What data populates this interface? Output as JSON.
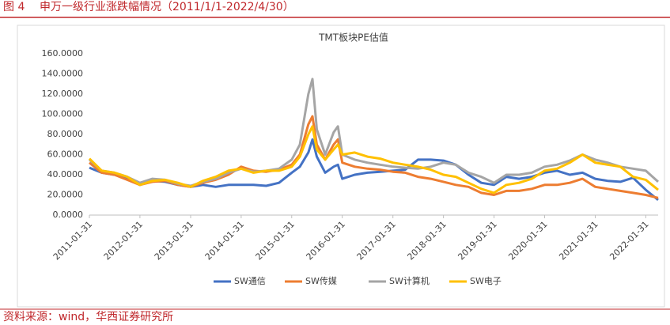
{
  "header": {
    "figure": "图 4",
    "title": "申万一级行业涨跌幅情况（2011/1/1-2022/4/30）"
  },
  "source": "资料来源：wind，华西证券研究所",
  "chart_data": {
    "type": "line",
    "title": "TMT板块PE估值",
    "x": [
      "2011-01-31",
      "2011-04-30",
      "2011-07-31",
      "2011-10-31",
      "2012-01-31",
      "2012-04-30",
      "2012-07-31",
      "2012-10-31",
      "2013-01-31",
      "2013-04-30",
      "2013-07-31",
      "2013-10-31",
      "2014-01-31",
      "2014-04-30",
      "2014-07-31",
      "2014-10-31",
      "2015-01-31",
      "2015-03-31",
      "2015-05-31",
      "2015-06-30",
      "2015-07-31",
      "2015-09-30",
      "2015-11-30",
      "2015-12-31",
      "2016-01-31",
      "2016-04-30",
      "2016-07-31",
      "2016-10-31",
      "2017-01-31",
      "2017-04-30",
      "2017-07-31",
      "2017-10-31",
      "2018-01-31",
      "2018-04-30",
      "2018-07-31",
      "2018-10-31",
      "2019-01-31",
      "2019-04-30",
      "2019-07-31",
      "2019-10-31",
      "2020-01-31",
      "2020-04-30",
      "2020-07-31",
      "2020-10-31",
      "2021-01-31",
      "2021-04-30",
      "2021-07-31",
      "2021-10-31",
      "2022-01-31",
      "2022-04-30"
    ],
    "series": [
      {
        "name": "SW通信",
        "color": "#4472c4",
        "values": [
          47,
          42,
          40,
          36,
          30,
          34,
          33,
          30,
          28,
          30,
          28,
          30,
          30,
          30,
          29,
          32,
          42,
          48,
          62,
          75,
          58,
          42,
          48,
          50,
          36,
          40,
          42,
          43,
          44,
          45,
          55,
          55,
          54,
          50,
          40,
          32,
          30,
          38,
          36,
          38,
          42,
          44,
          40,
          42,
          36,
          34,
          33,
          37,
          25,
          15
        ]
      },
      {
        "name": "SW传媒",
        "color": "#ed7d31",
        "values": [
          52,
          42,
          40,
          35,
          30,
          33,
          34,
          30,
          28,
          32,
          35,
          40,
          48,
          44,
          43,
          45,
          50,
          60,
          90,
          98,
          70,
          55,
          70,
          75,
          52,
          48,
          46,
          45,
          43,
          42,
          38,
          36,
          33,
          30,
          28,
          22,
          20,
          24,
          24,
          26,
          30,
          30,
          32,
          36,
          28,
          26,
          24,
          22,
          20,
          17
        ]
      },
      {
        "name": "SW计算机",
        "color": "#a5a5a5",
        "values": [
          55,
          44,
          42,
          38,
          32,
          36,
          35,
          31,
          29,
          33,
          36,
          42,
          46,
          43,
          44,
          46,
          55,
          70,
          120,
          135,
          85,
          60,
          82,
          88,
          60,
          55,
          52,
          50,
          48,
          47,
          46,
          48,
          52,
          50,
          42,
          38,
          32,
          40,
          40,
          42,
          48,
          50,
          54,
          60,
          55,
          52,
          48,
          46,
          44,
          33
        ]
      },
      {
        "name": "SW电子",
        "color": "#ffc000",
        "values": [
          56,
          44,
          42,
          38,
          30,
          34,
          35,
          32,
          28,
          34,
          38,
          44,
          46,
          42,
          44,
          44,
          48,
          58,
          80,
          88,
          65,
          55,
          65,
          70,
          60,
          62,
          58,
          56,
          52,
          50,
          48,
          45,
          40,
          38,
          32,
          26,
          22,
          30,
          32,
          36,
          44,
          46,
          52,
          60,
          52,
          50,
          48,
          38,
          35,
          25
        ]
      }
    ],
    "xlim": [
      "2011-01-31",
      "2022-04-30"
    ],
    "xticks": [
      "2011-01-31",
      "2012-01-31",
      "2013-01-31",
      "2014-01-31",
      "2015-01-31",
      "2016-01-31",
      "2017-01-31",
      "2018-01-31",
      "2019-01-31",
      "2020-01-31",
      "2021-01-31",
      "2022-01-31"
    ],
    "ylim": [
      0,
      160
    ],
    "yticks": [
      {
        "value": 0,
        "label": "0.0000"
      },
      {
        "value": 20,
        "label": "20.0000"
      },
      {
        "value": 40,
        "label": "40.0000"
      },
      {
        "value": 60,
        "label": "60.0000"
      },
      {
        "value": 80,
        "label": "80.0000"
      },
      {
        "value": 100,
        "label": "100.0000"
      },
      {
        "value": 120,
        "label": "120.0000"
      },
      {
        "value": 140,
        "label": "140.0000"
      },
      {
        "value": 160,
        "label": "160.0000"
      }
    ],
    "grid": false,
    "legend": "bottom"
  }
}
